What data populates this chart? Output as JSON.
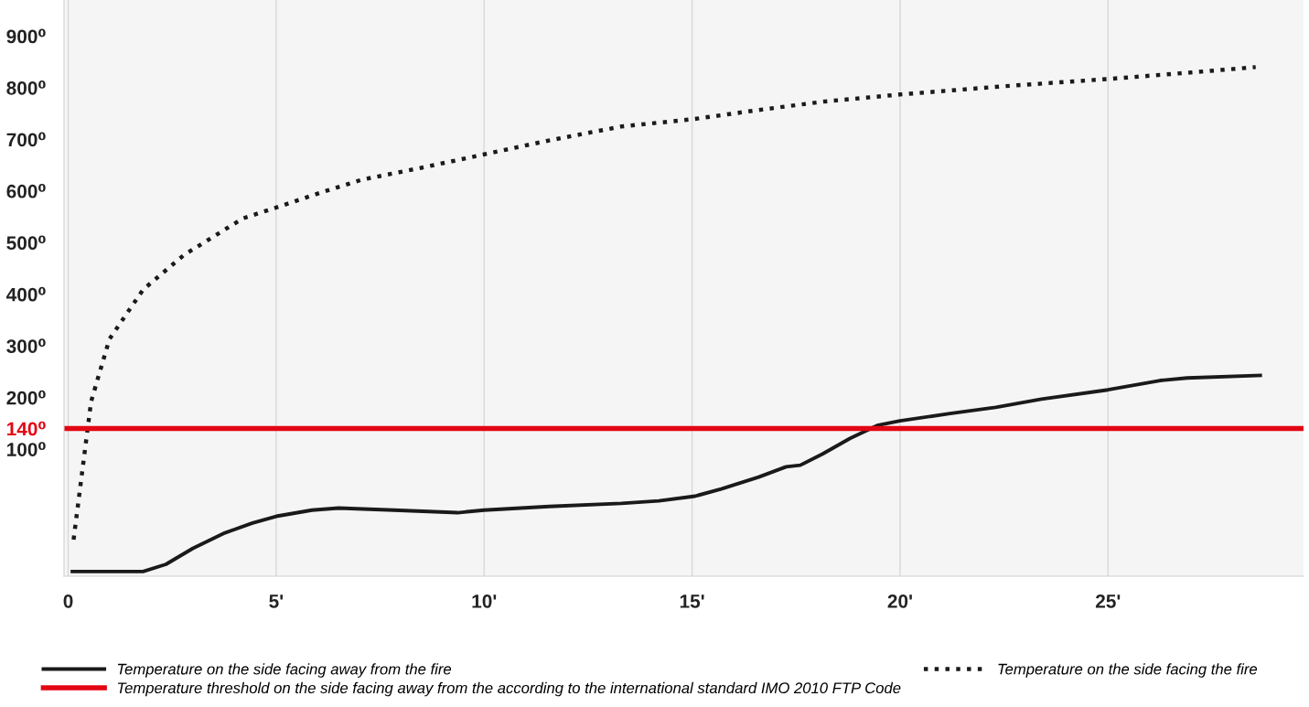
{
  "chart_data": {
    "type": "line",
    "series": [
      {
        "name": "Temperature on the side facing away from the fire",
        "color": "#1a1a1a",
        "line_style": "solid",
        "x": [
          0.1,
          1.8,
          2.35,
          3.0,
          3.77,
          4.43,
          5.0,
          5.86,
          6.5,
          7.83,
          9.36,
          10.0,
          11.56,
          13.3,
          14.2,
          15.07,
          15.7,
          16.6,
          17.26,
          17.6,
          18.14,
          18.8,
          19.45,
          20.0,
          21.2,
          22.3,
          23.4,
          25.0,
          26.25,
          26.9,
          28.66
        ],
        "values": [
          -137,
          -137,
          -123,
          -92,
          -62,
          -43,
          -30,
          -18,
          -14,
          -18,
          -23,
          -18,
          -11,
          -5,
          0,
          9,
          23,
          46,
          66,
          69,
          91,
          121,
          146,
          155,
          169,
          181,
          197,
          215,
          233,
          238,
          243
        ]
      },
      {
        "name": "Temperature on the side facing the fire",
        "color": "#1a1a1a",
        "line_style": "dotted",
        "x": [
          0.13,
          0.55,
          0.99,
          1.8,
          2.78,
          4.2,
          5.0,
          6.07,
          7.06,
          8.49,
          10.0,
          11.56,
          13.3,
          15.0,
          16.6,
          18.14,
          20.0,
          22.5,
          25.0,
          26.9,
          28.55
        ],
        "values": [
          -75,
          192,
          313,
          409,
          476,
          547,
          568,
          597,
          622,
          645,
          671,
          698,
          725,
          739,
          757,
          773,
          787,
          803,
          817,
          829,
          840
        ]
      }
    ],
    "ref_lines": [
      {
        "axis": "y",
        "value": 140,
        "label": "Temperature threshold on the side facing away from the according to the international standard IMO 2010 FTP Code",
        "color": "#e30613"
      }
    ],
    "xlim": [
      -0.1,
      29.7
    ],
    "xticks": [
      {
        "value": 0,
        "label": "0"
      },
      {
        "value": 5,
        "label": "5'"
      },
      {
        "value": 10,
        "label": "10'"
      },
      {
        "value": 15,
        "label": "15'"
      },
      {
        "value": 20,
        "label": "20'"
      },
      {
        "value": 25,
        "label": "25'"
      }
    ],
    "ylim": [
      -146,
      970
    ],
    "yticks": [
      {
        "value": 100,
        "label": "100⁰"
      },
      {
        "value": 140,
        "label": "140⁰"
      },
      {
        "value": 200,
        "label": "200⁰"
      },
      {
        "value": 300,
        "label": "300⁰"
      },
      {
        "value": 400,
        "label": "400⁰"
      },
      {
        "value": 500,
        "label": "500⁰"
      },
      {
        "value": 600,
        "label": "600⁰"
      },
      {
        "value": 700,
        "label": "700⁰"
      },
      {
        "value": 800,
        "label": "800⁰"
      },
      {
        "value": 900,
        "label": "900⁰"
      }
    ],
    "grid": "x",
    "legend": "bottom"
  }
}
